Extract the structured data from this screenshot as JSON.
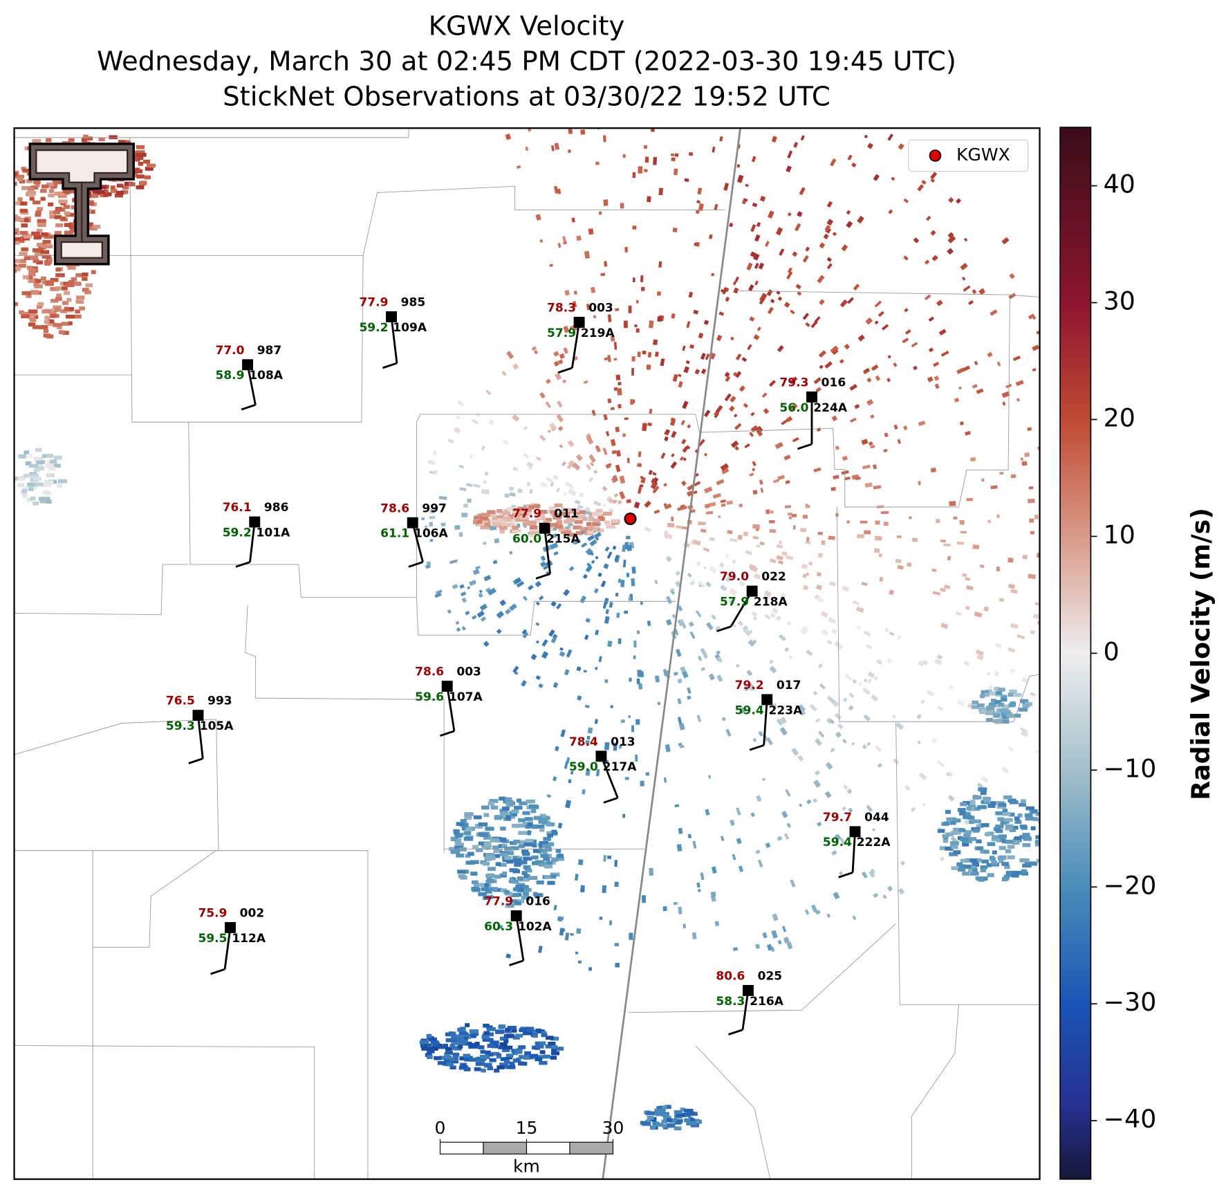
{
  "title": [
    "KGWX Velocity",
    "Wednesday, March 30 at 02:45 PM CDT (2022-03-30 19:45 UTC)",
    "StickNet Observations at 03/30/22 19:52 UTC"
  ],
  "legend": {
    "label": "KGWX"
  },
  "stations": [
    {
      "id": "108A",
      "temp": "77.0",
      "dewpoint": "58.9",
      "pressure": "987"
    },
    {
      "id": "109A",
      "temp": "77.9",
      "dewpoint": "59.2",
      "pressure": "985"
    },
    {
      "id": "219A",
      "temp": "78.3",
      "dewpoint": "57.9",
      "pressure": "003"
    },
    {
      "id": "224A",
      "temp": "79.3",
      "dewpoint": "56.0",
      "pressure": "016"
    },
    {
      "id": "101A",
      "temp": "76.1",
      "dewpoint": "59.2",
      "pressure": "986"
    },
    {
      "id": "106A",
      "temp": "78.6",
      "dewpoint": "61.1",
      "pressure": "997"
    },
    {
      "id": "215A",
      "temp": "77.9",
      "dewpoint": "60.0",
      "pressure": "011"
    },
    {
      "id": "218A",
      "temp": "79.0",
      "dewpoint": "57.9",
      "pressure": "022"
    },
    {
      "id": "107A",
      "temp": "78.6",
      "dewpoint": "59.6",
      "pressure": "003"
    },
    {
      "id": "105A",
      "temp": "76.5",
      "dewpoint": "59.3",
      "pressure": "993"
    },
    {
      "id": "223A",
      "temp": "79.2",
      "dewpoint": "59.4",
      "pressure": "017"
    },
    {
      "id": "217A",
      "temp": "78.4",
      "dewpoint": "59.0",
      "pressure": "013"
    },
    {
      "id": "222A",
      "temp": "79.7",
      "dewpoint": "59.4",
      "pressure": "044"
    },
    {
      "id": "112A",
      "temp": "75.9",
      "dewpoint": "59.5",
      "pressure": "002"
    },
    {
      "id": "102A",
      "temp": "77.9",
      "dewpoint": "60.3",
      "pressure": "016"
    },
    {
      "id": "216A",
      "temp": "80.6",
      "dewpoint": "58.3",
      "pressure": "025"
    }
  ],
  "colorbar": {
    "label": "Radial Velocity (m/s)",
    "vlim": [
      -45,
      45
    ],
    "ticks": [
      {
        "value": -40,
        "label": "−40"
      },
      {
        "value": -30,
        "label": "−30"
      },
      {
        "value": -20,
        "label": "−20"
      },
      {
        "value": -10,
        "label": "−10"
      },
      0,
      10,
      20,
      30,
      40
    ]
  },
  "scale_bar": {
    "unit": "km",
    "range": [
      0,
      30
    ],
    "ticks": [
      0,
      15,
      30
    ]
  }
}
